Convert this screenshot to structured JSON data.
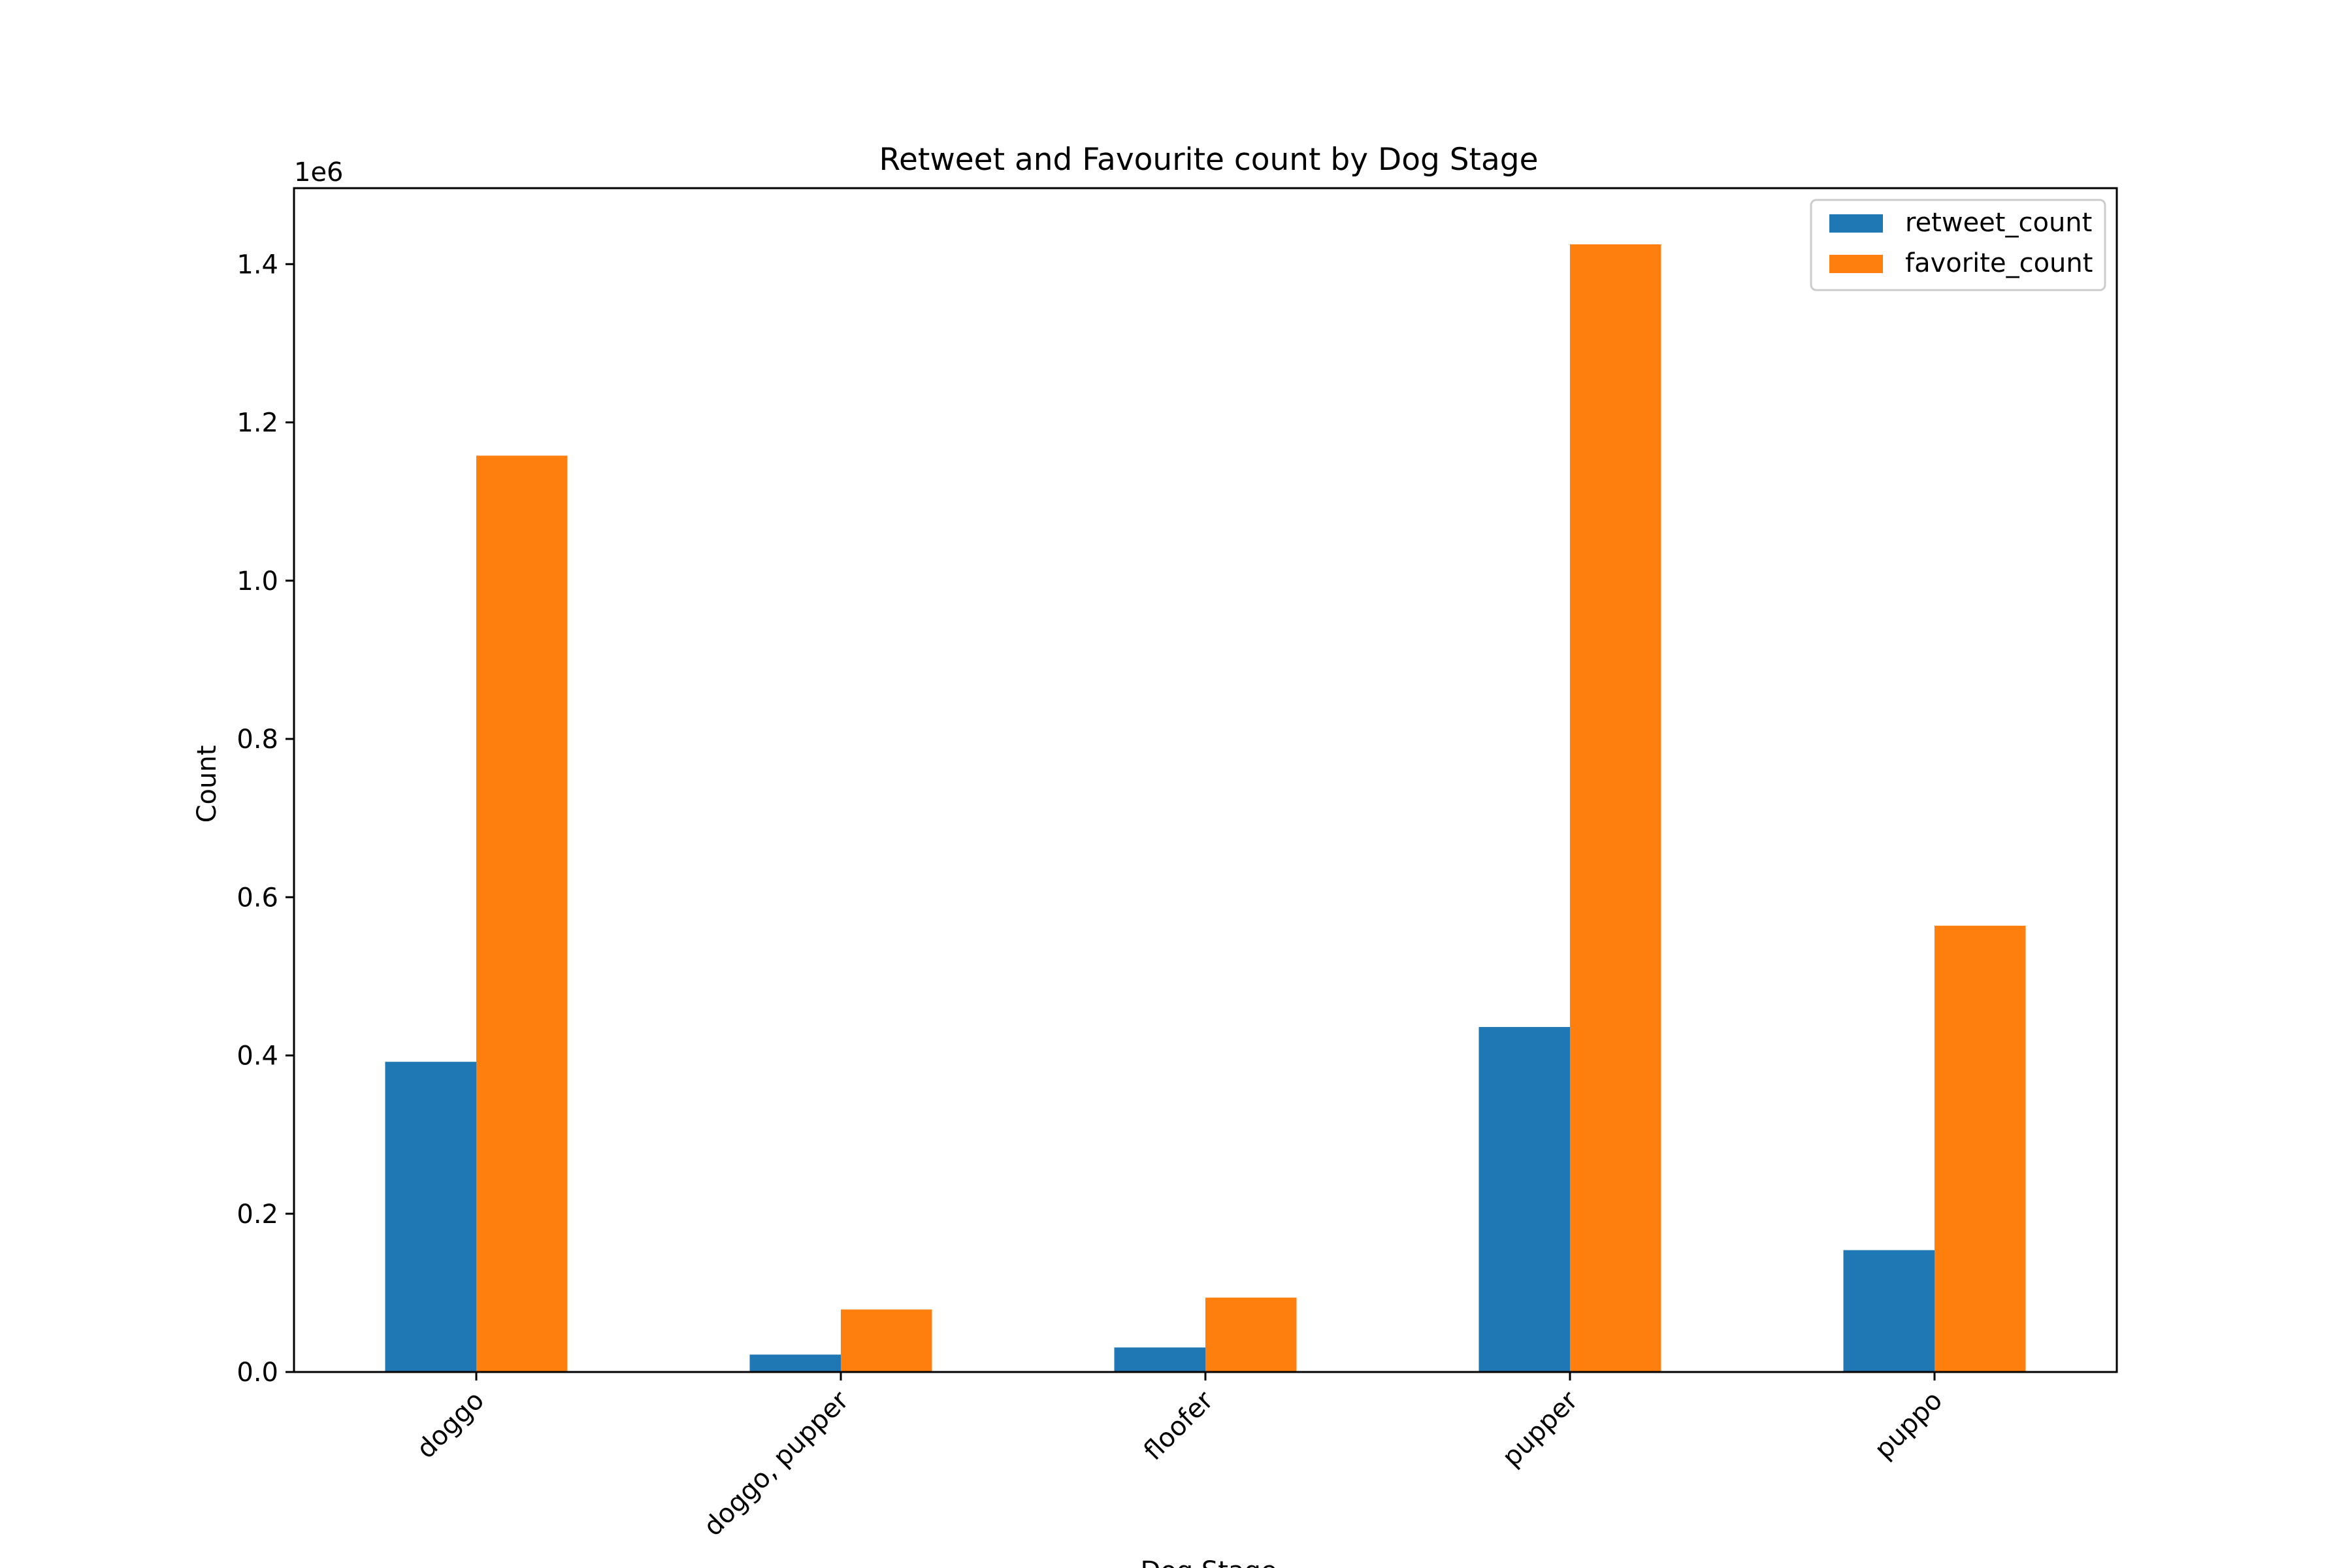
{
  "chart_data": {
    "type": "bar",
    "title": "Retweet and Favourite count by Dog Stage",
    "xlabel": "Dog Stage",
    "ylabel": "Count",
    "y_offset_label": "1e6",
    "categories": [
      "doggo",
      "doggo, pupper",
      "floofer",
      "pupper",
      "puppo"
    ],
    "series": [
      {
        "name": "retweet_count",
        "color": "#1f77b4",
        "values": [
          392000,
          22000,
          31000,
          436000,
          154000
        ]
      },
      {
        "name": "favorite_count",
        "color": "#ff7f0e",
        "values": [
          1158000,
          79000,
          94000,
          1425000,
          564000
        ]
      }
    ],
    "ylim": [
      0,
      1496000
    ],
    "yticks": [
      0.0,
      0.2,
      0.4,
      0.6,
      0.8,
      1.0,
      1.2,
      1.4
    ],
    "ytick_labels": [
      "0.0",
      "0.2",
      "0.4",
      "0.6",
      "0.8",
      "1.0",
      "1.2",
      "1.4"
    ],
    "grid": false,
    "legend_position": "top-right"
  }
}
